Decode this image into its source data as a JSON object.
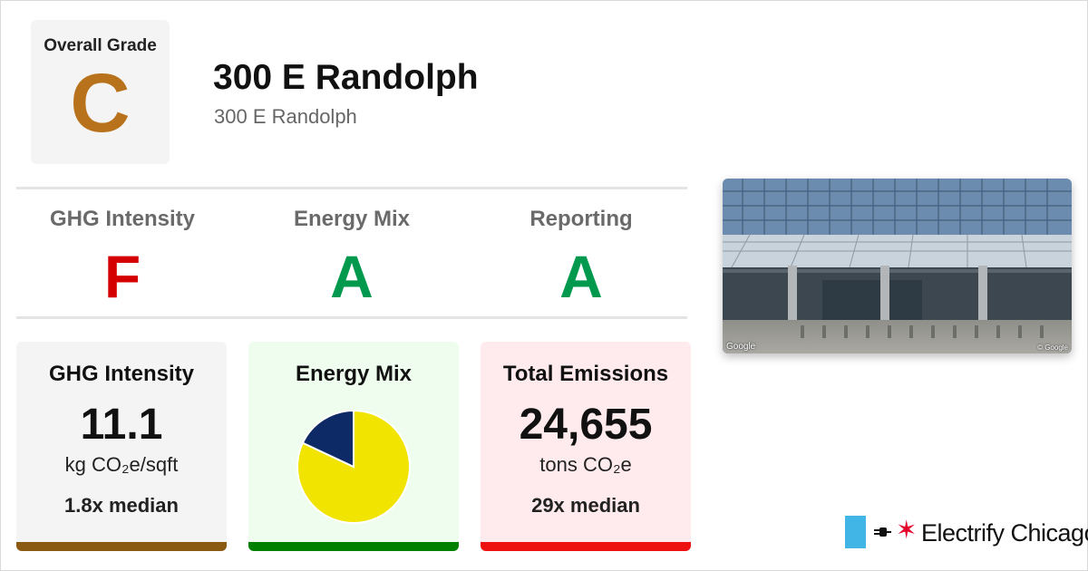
{
  "overall": {
    "label": "Overall Grade",
    "grade": "C",
    "color": "#b8721c"
  },
  "building": {
    "name": "300 E Randolph",
    "address": "300 E Randolph"
  },
  "grades": [
    {
      "label": "GHG Intensity",
      "grade": "F",
      "color": "#d40000"
    },
    {
      "label": "Energy Mix",
      "grade": "A",
      "color": "#00994d"
    },
    {
      "label": "Reporting",
      "grade": "A",
      "color": "#00994d"
    }
  ],
  "cards": {
    "ghg": {
      "title": "GHG Intensity",
      "value": "11.1",
      "unit": "kg CO₂e/sqft",
      "median": "1.8x median",
      "bg": "#f4f4f4",
      "bar_color": "#8a5a12"
    },
    "mix": {
      "title": "Energy Mix",
      "bg": "#eefdee",
      "bar_color": "#008000",
      "pie": {
        "slices": [
          {
            "fraction": 0.82,
            "color": "#f0e400"
          },
          {
            "fraction": 0.18,
            "color": "#0d2a66"
          }
        ]
      }
    },
    "emissions": {
      "title": "Total Emissions",
      "value": "24,655",
      "unit": "tons CO₂e",
      "median": "29x median",
      "bg": "#ffeaee",
      "bar_color": "#ee1111"
    }
  },
  "photo": {
    "credit_left": "Google",
    "credit_right": "© Google"
  },
  "brand": {
    "name": "Electrify Chicago",
    "flag_color": "#41b6e6",
    "star_color": "#e4002b"
  }
}
